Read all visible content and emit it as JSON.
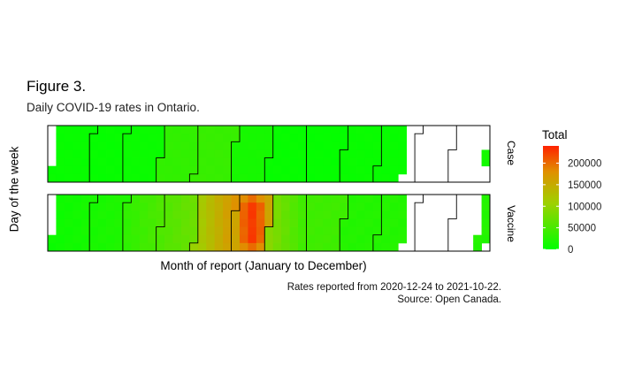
{
  "title": "Figure 3.",
  "subtitle": "Daily COVID-19 rates in Ontario.",
  "caption_lines": [
    "Rates reported from 2020-12-24 to 2021-10-22.",
    "Source: Open Canada."
  ],
  "chart_data": {
    "type": "heatmap",
    "xlabel": "Month of report (January to December)",
    "ylabel": "Day of the week",
    "facets": [
      "Case",
      "Vaccine"
    ],
    "legend": {
      "title": "Total",
      "ticks": [
        0,
        50000,
        100000,
        150000,
        200000
      ],
      "tick_labels": [
        "0",
        "50000",
        "100000",
        "150000",
        "200000"
      ],
      "max": 240000,
      "colors": [
        "#00ff00",
        "#ff2200"
      ]
    },
    "start_date": "2021-01-01",
    "grid": false,
    "case_total_approx": [
      {
        "period": "January",
        "value": 3000
      },
      {
        "period": "April",
        "value": 4000
      },
      {
        "period": "December",
        "value": 1500
      }
    ],
    "vaccine_total_approx": [
      {
        "period": "January",
        "value": 10000
      },
      {
        "period": "March",
        "value": 30000
      },
      {
        "period": "May",
        "value": 60000
      },
      {
        "period": "June",
        "value": 175000
      },
      {
        "period": "June (peak)",
        "value": 235000
      },
      {
        "period": "July",
        "value": 90000
      },
      {
        "period": "August",
        "value": 40000
      },
      {
        "period": "September",
        "value": 30000
      },
      {
        "period": "October",
        "value": 20000
      }
    ]
  }
}
